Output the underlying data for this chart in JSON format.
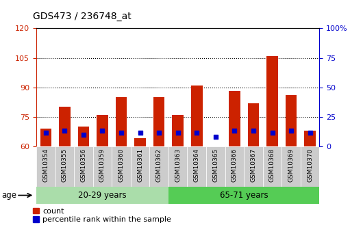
{
  "title": "GDS473 / 236748_at",
  "samples": [
    "GSM10354",
    "GSM10355",
    "GSM10356",
    "GSM10359",
    "GSM10360",
    "GSM10361",
    "GSM10362",
    "GSM10363",
    "GSM10364",
    "GSM10365",
    "GSM10366",
    "GSM10367",
    "GSM10368",
    "GSM10369",
    "GSM10370"
  ],
  "count_values": [
    69,
    80,
    70,
    76,
    85,
    64,
    85,
    76,
    91,
    60,
    88,
    82,
    106,
    86,
    68
  ],
  "percentile_values": [
    67,
    68,
    66,
    68,
    67,
    67,
    67,
    67,
    67,
    65,
    68,
    68,
    67,
    68,
    67
  ],
  "group1_label": "20-29 years",
  "group2_label": "65-71 years",
  "group1_count": 7,
  "group2_count": 8,
  "ylim_left": [
    60,
    120
  ],
  "ylim_right": [
    0,
    100
  ],
  "yticks_left": [
    60,
    75,
    90,
    105,
    120
  ],
  "yticks_right": [
    0,
    25,
    50,
    75,
    100
  ],
  "ytick_labels_right": [
    "0",
    "25",
    "50",
    "75",
    "100%"
  ],
  "bar_color": "#cc2200",
  "dot_color": "#0000cc",
  "group1_bg": "#aaddaa",
  "group2_bg": "#55cc55",
  "sample_bg": "#cccccc",
  "left_axis_color": "#cc2200",
  "right_axis_color": "#0000cc",
  "legend_count_label": "count",
  "legend_pct_label": "percentile rank within the sample",
  "gridline_ticks": [
    75,
    90,
    105
  ]
}
